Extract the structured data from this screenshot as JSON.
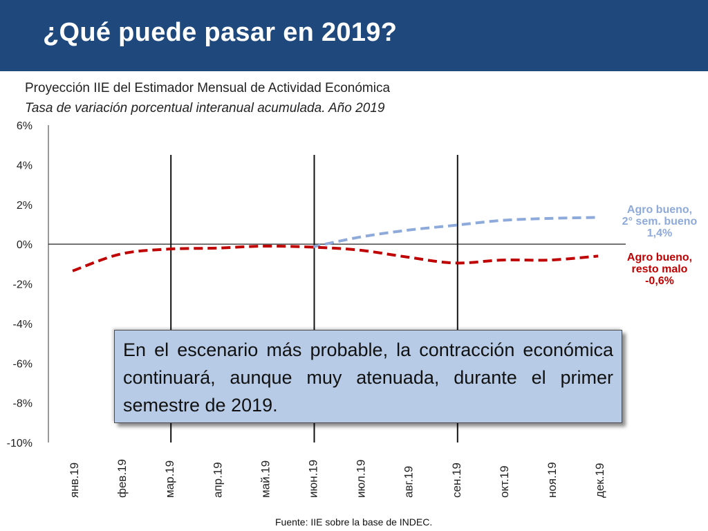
{
  "header": {
    "title": "¿Qué puede pasar en 2019?"
  },
  "subtitle": {
    "line1": "Proyección IIE del Estimador Mensual de Actividad Económica",
    "line2": "Tasa de variación porcentual interanual acumulada. Año 2019"
  },
  "callout": {
    "text": "En el escenario más probable, la contracción económica continuará, aunque muy atenuada, durante el primer semestre de 2019."
  },
  "source": "Fuente: IIE sobre la base de INDEC.",
  "chart_data": {
    "type": "line",
    "title": "",
    "xlabel": "",
    "ylabel": "",
    "categories": [
      "янв.19",
      "фев.19",
      "мар.19",
      "апр.19",
      "май.19",
      "июн.19",
      "июл.19",
      "авг.19",
      "сен.19",
      "окт.19",
      "ноя.19",
      "дек.19"
    ],
    "ylim": [
      -10,
      6
    ],
    "yticks": [
      6,
      4,
      2,
      0,
      -2,
      -4,
      -6,
      -8,
      -10
    ],
    "ytick_labels": [
      "6%",
      "4%",
      "2%",
      "0%",
      "-2%",
      "-4%",
      "-6%",
      "-8%",
      "-10%"
    ],
    "vertical_markers": [
      "мар.19",
      "июн.19",
      "сен.19"
    ],
    "grid": false,
    "series": [
      {
        "name": "Agro bueno, resto malo -0,6%",
        "label_lines": [
          "Agro bueno,",
          "resto malo",
          "-0,6%"
        ],
        "color": "#c00000",
        "dash": true,
        "start_index": 0,
        "values": [
          -1.35,
          -0.5,
          -0.25,
          -0.2,
          -0.1,
          -0.15,
          -0.3,
          -0.65,
          -0.95,
          -0.8,
          -0.8,
          -0.6
        ]
      },
      {
        "name": "Agro bueno, 2° sem. bueno 1,4%",
        "label_lines": [
          "Agro bueno,",
          "2° sem. bueno",
          "1,4%"
        ],
        "color": "#8eaadb",
        "dash": true,
        "start_index": 5,
        "values": [
          null,
          null,
          null,
          null,
          null,
          -0.15,
          0.35,
          0.7,
          0.95,
          1.2,
          1.3,
          1.35
        ]
      }
    ]
  }
}
